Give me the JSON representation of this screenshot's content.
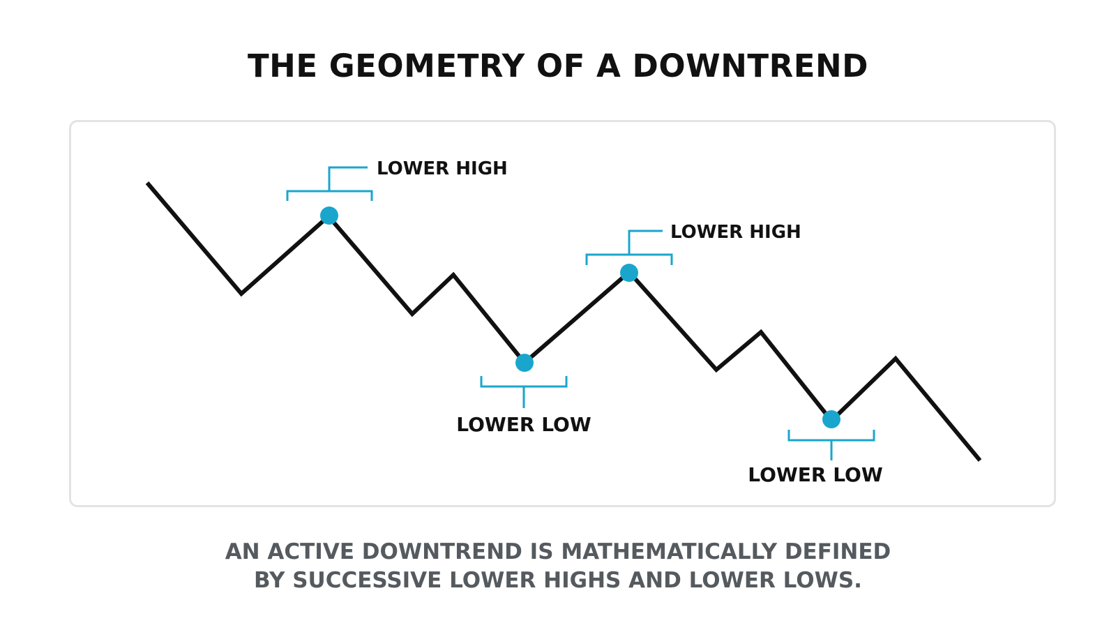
{
  "title": "THE GEOMETRY OF A DOWNTREND",
  "annotations": {
    "high_1": "LOWER HIGH",
    "high_2": "LOWER HIGH",
    "low_1": "LOWER LOW",
    "low_2": "LOWER LOW"
  },
  "caption": {
    "line1": "AN ACTIVE DOWNTREND IS MATHEMATICALLY DEFINED",
    "line2": "BY SUCCESSIVE LOWER HIGHS AND LOWER LOWS."
  },
  "colors": {
    "line": "#111111",
    "accent": "#1aa6cc",
    "panel_border": "#e3e3e3",
    "caption": "#555a5f"
  }
}
